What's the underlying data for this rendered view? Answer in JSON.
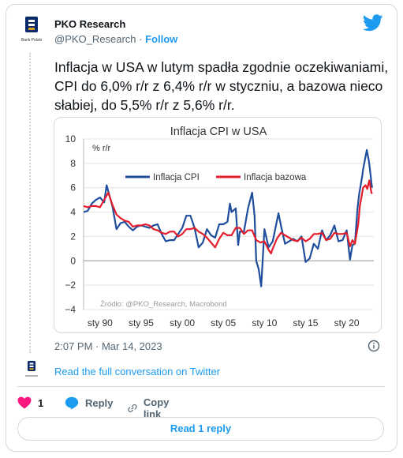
{
  "author": {
    "name": "PKO Research",
    "handle": "@PKO_Research",
    "separator": "·",
    "follow_label": "Follow",
    "logo_caption": "Bank Polski"
  },
  "tweet": {
    "text": "Inflacja w USA w lutym spadła zgodnie oczekiwaniami, CPI do 6,0% r/r z 6,4% r/r w styczniu, a bazowa nieco słabiej, do 5,5% r/r z 5,6% r/r.",
    "timestamp": "2:07 PM · Mar 14, 2023"
  },
  "links": {
    "read_full": "Read the full conversation on Twitter"
  },
  "actions": {
    "like_count": "1",
    "reply_label": "Reply",
    "copy_label": "Copy link",
    "read_reply_label": "Read 1 reply"
  },
  "colors": {
    "accent": "#1d9bf0",
    "like": "#f91880",
    "cpi": "#1f4e9c",
    "core": "#e31d2b"
  },
  "chart_data": {
    "type": "line",
    "title": "Inflacja CPI w USA",
    "ylabel": "% r/r",
    "source": "Źródło: @PKO_Research, Macrobond",
    "ylim": [
      -4,
      10
    ],
    "yticks": [
      -4,
      -2,
      0,
      2,
      4,
      6,
      8,
      10
    ],
    "xlim": [
      1988,
      2023.3
    ],
    "xticks": [
      {
        "x": 1990,
        "label": "sty 90"
      },
      {
        "x": 1995,
        "label": "sty 95"
      },
      {
        "x": 2000,
        "label": "sty 00"
      },
      {
        "x": 2005,
        "label": "sty 05"
      },
      {
        "x": 2010,
        "label": "sty 10"
      },
      {
        "x": 2015,
        "label": "sty 15"
      },
      {
        "x": 2020,
        "label": "sty 20"
      }
    ],
    "legend_position": "top-left",
    "series": [
      {
        "name": "Inflacja CPI",
        "color": "#1f4e9c",
        "points": [
          [
            1988,
            4.0
          ],
          [
            1988.5,
            4.1
          ],
          [
            1989,
            4.7
          ],
          [
            1989.5,
            5.0
          ],
          [
            1990,
            5.2
          ],
          [
            1990.5,
            4.8
          ],
          [
            1990.8,
            6.2
          ],
          [
            1991,
            5.7
          ],
          [
            1991.5,
            4.5
          ],
          [
            1992,
            2.6
          ],
          [
            1992.5,
            3.1
          ],
          [
            1993,
            3.2
          ],
          [
            1993.5,
            2.8
          ],
          [
            1994,
            2.5
          ],
          [
            1994.5,
            2.8
          ],
          [
            1995,
            2.9
          ],
          [
            1995.5,
            2.8
          ],
          [
            1996,
            2.7
          ],
          [
            1996.5,
            2.9
          ],
          [
            1997,
            3.0
          ],
          [
            1997.5,
            2.2
          ],
          [
            1998,
            1.6
          ],
          [
            1998.5,
            1.7
          ],
          [
            1999,
            1.7
          ],
          [
            1999.5,
            2.2
          ],
          [
            2000,
            2.7
          ],
          [
            2000.5,
            3.7
          ],
          [
            2001,
            3.7
          ],
          [
            2001.5,
            2.7
          ],
          [
            2002,
            1.1
          ],
          [
            2002.5,
            1.5
          ],
          [
            2003,
            2.6
          ],
          [
            2003.5,
            2.1
          ],
          [
            2004,
            1.9
          ],
          [
            2004.5,
            3.0
          ],
          [
            2005,
            3.0
          ],
          [
            2005.5,
            3.2
          ],
          [
            2005.8,
            4.7
          ],
          [
            2006,
            4.0
          ],
          [
            2006.5,
            4.3
          ],
          [
            2006.8,
            1.3
          ],
          [
            2007,
            2.4
          ],
          [
            2007.5,
            2.4
          ],
          [
            2008,
            4.3
          ],
          [
            2008.5,
            5.6
          ],
          [
            2008.8,
            3.7
          ],
          [
            2009,
            0.0
          ],
          [
            2009.3,
            -0.7
          ],
          [
            2009.6,
            -2.1
          ],
          [
            2010,
            2.6
          ],
          [
            2010.5,
            1.1
          ],
          [
            2011,
            1.6
          ],
          [
            2011.7,
            3.9
          ],
          [
            2012,
            2.9
          ],
          [
            2012.5,
            1.4
          ],
          [
            2013,
            1.6
          ],
          [
            2013.5,
            1.8
          ],
          [
            2014,
            1.6
          ],
          [
            2014.5,
            2.0
          ],
          [
            2015,
            -0.1
          ],
          [
            2015.5,
            0.2
          ],
          [
            2016,
            1.4
          ],
          [
            2016.5,
            1.0
          ],
          [
            2017,
            2.5
          ],
          [
            2017.5,
            1.7
          ],
          [
            2018,
            2.1
          ],
          [
            2018.5,
            2.9
          ],
          [
            2019,
            1.6
          ],
          [
            2019.5,
            1.7
          ],
          [
            2020,
            2.5
          ],
          [
            2020.4,
            0.1
          ],
          [
            2020.7,
            1.3
          ],
          [
            2021,
            1.4
          ],
          [
            2021.3,
            4.2
          ],
          [
            2021.5,
            5.4
          ],
          [
            2021.9,
            7.0
          ],
          [
            2022,
            7.5
          ],
          [
            2022.45,
            9.1
          ],
          [
            2022.7,
            8.2
          ],
          [
            2022.9,
            7.1
          ],
          [
            2023,
            6.4
          ],
          [
            2023.1,
            6.0
          ]
        ]
      },
      {
        "name": "Inflacja bazowa",
        "color": "#e31d2b",
        "points": [
          [
            1988,
            4.5
          ],
          [
            1988.5,
            4.4
          ],
          [
            1989,
            4.5
          ],
          [
            1989.5,
            4.5
          ],
          [
            1990,
            4.4
          ],
          [
            1990.5,
            5.0
          ],
          [
            1991,
            5.6
          ],
          [
            1991.5,
            4.6
          ],
          [
            1992,
            3.8
          ],
          [
            1992.5,
            3.5
          ],
          [
            1993,
            3.3
          ],
          [
            1993.5,
            3.2
          ],
          [
            1994,
            2.8
          ],
          [
            1994.5,
            2.9
          ],
          [
            1995,
            2.9
          ],
          [
            1995.5,
            3.0
          ],
          [
            1996,
            2.9
          ],
          [
            1996.5,
            2.6
          ],
          [
            1997,
            2.5
          ],
          [
            1997.5,
            2.3
          ],
          [
            1998,
            2.2
          ],
          [
            1998.5,
            2.4
          ],
          [
            1999,
            2.4
          ],
          [
            1999.5,
            2.0
          ],
          [
            2000,
            2.2
          ],
          [
            2000.5,
            2.6
          ],
          [
            2001,
            2.6
          ],
          [
            2001.5,
            2.7
          ],
          [
            2002,
            2.4
          ],
          [
            2002.5,
            2.2
          ],
          [
            2003,
            1.9
          ],
          [
            2003.5,
            1.5
          ],
          [
            2004,
            1.1
          ],
          [
            2004.5,
            1.8
          ],
          [
            2005,
            2.3
          ],
          [
            2005.5,
            2.1
          ],
          [
            2006,
            2.1
          ],
          [
            2006.5,
            2.7
          ],
          [
            2007,
            2.7
          ],
          [
            2007.5,
            2.2
          ],
          [
            2008,
            2.5
          ],
          [
            2008.5,
            2.5
          ],
          [
            2009,
            1.7
          ],
          [
            2009.5,
            1.5
          ],
          [
            2010,
            1.6
          ],
          [
            2010.5,
            0.9
          ],
          [
            2010.8,
            0.6
          ],
          [
            2011,
            1.0
          ],
          [
            2011.5,
            1.8
          ],
          [
            2012,
            2.3
          ],
          [
            2012.5,
            2.1
          ],
          [
            2013,
            1.9
          ],
          [
            2013.5,
            1.7
          ],
          [
            2014,
            1.6
          ],
          [
            2014.5,
            1.9
          ],
          [
            2015,
            1.6
          ],
          [
            2015.5,
            1.8
          ],
          [
            2016,
            2.2
          ],
          [
            2016.5,
            2.2
          ],
          [
            2017,
            2.3
          ],
          [
            2017.5,
            1.7
          ],
          [
            2018,
            1.8
          ],
          [
            2018.5,
            2.3
          ],
          [
            2019,
            2.2
          ],
          [
            2019.5,
            2.2
          ],
          [
            2020,
            2.3
          ],
          [
            2020.4,
            1.2
          ],
          [
            2020.7,
            1.7
          ],
          [
            2021,
            1.4
          ],
          [
            2021.4,
            3.0
          ],
          [
            2021.6,
            4.5
          ],
          [
            2022,
            6.0
          ],
          [
            2022.3,
            6.2
          ],
          [
            2022.5,
            5.9
          ],
          [
            2022.75,
            6.6
          ],
          [
            2023,
            5.6
          ],
          [
            2023.1,
            5.5
          ]
        ]
      }
    ]
  }
}
